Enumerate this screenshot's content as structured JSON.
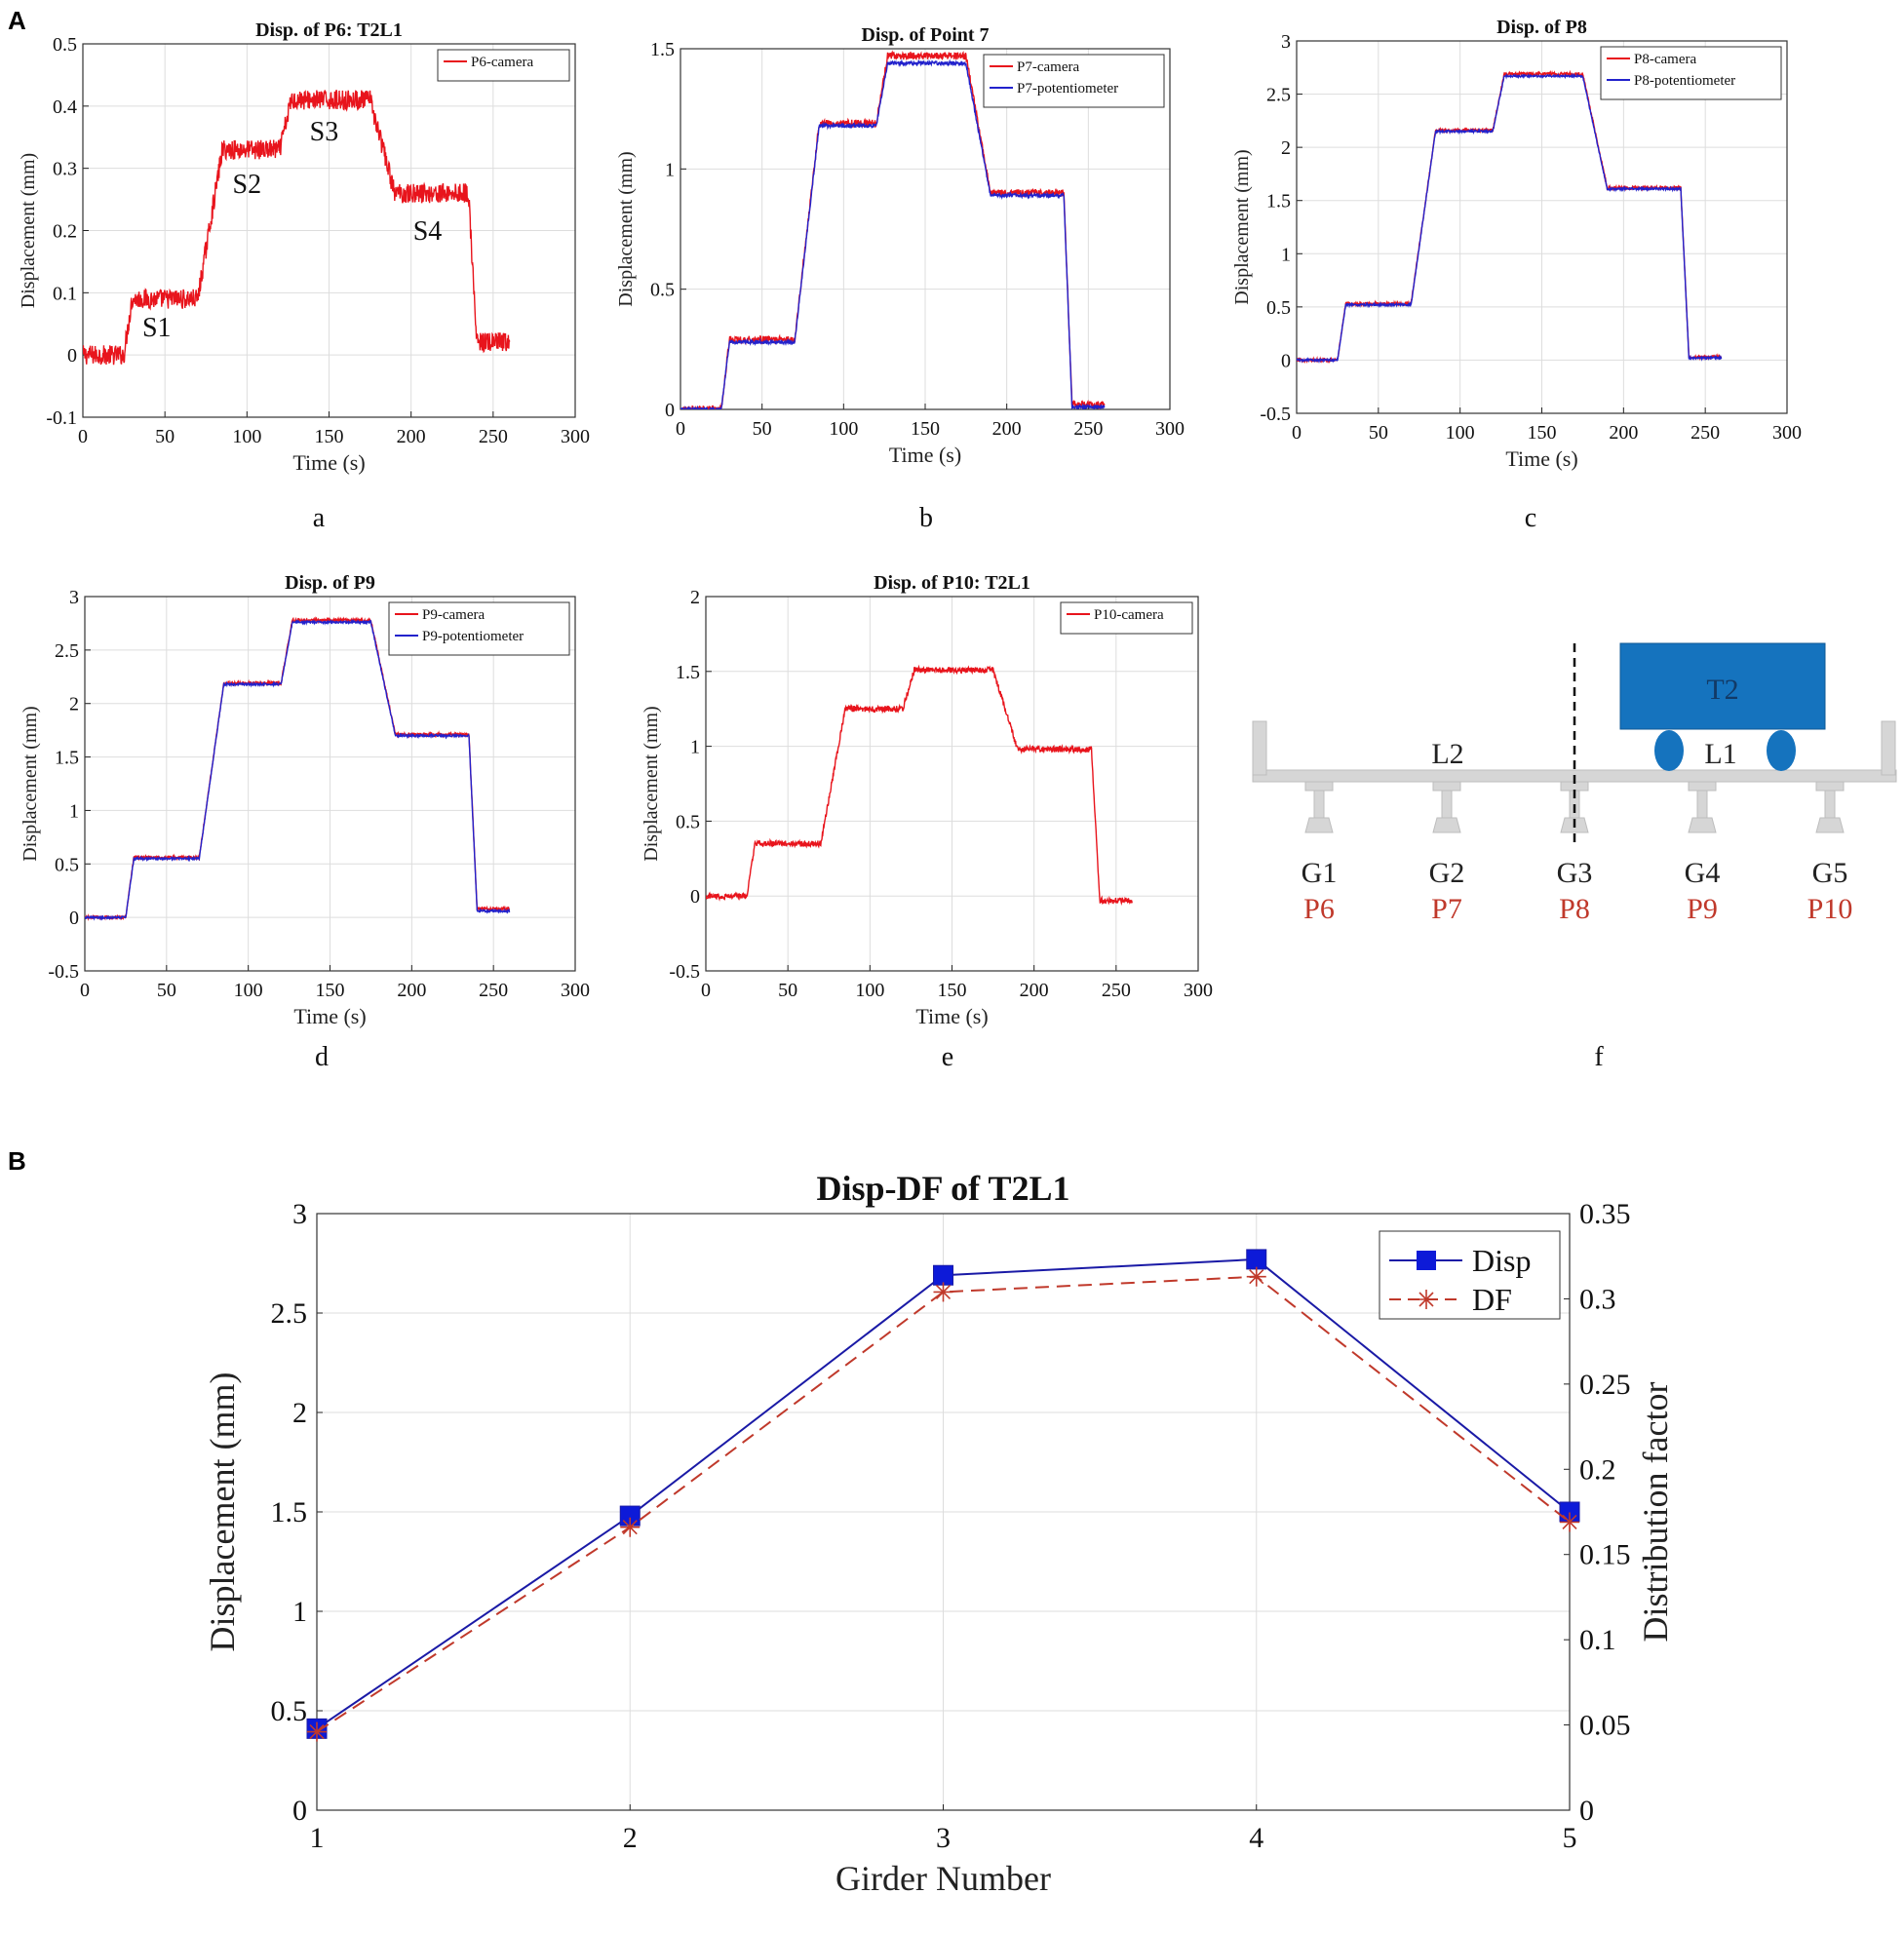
{
  "figure": {
    "panel_A_label": "A",
    "panel_B_label": "B"
  },
  "colors": {
    "camera": "#e8141c",
    "potentiometer": "#2222cc",
    "disp_line": "#1a1aa6",
    "disp_marker": "#0d1ad8",
    "df_line": "#c0392b",
    "grid": "#dddddd",
    "truck": "#1573be",
    "deck": "#d6d6d6",
    "point_label": "#c0392b"
  },
  "chart_data": [
    {
      "id": "a",
      "type": "line",
      "title": "Disp. of P6: T2L1",
      "xlabel": "Time (s)",
      "ylabel": "Displacement (mm)",
      "xlim": [
        0,
        300
      ],
      "ylim": [
        -0.1,
        0.5
      ],
      "xticks": [
        0,
        50,
        100,
        150,
        200,
        250,
        300
      ],
      "yticks": [
        -0.1,
        0,
        0.1,
        0.2,
        0.3,
        0.4,
        0.5
      ],
      "sublabel": "a",
      "series": [
        {
          "name": "P6-camera",
          "color": "camera",
          "noise": 0.016,
          "points": [
            [
              0,
              0
            ],
            [
              25,
              0
            ],
            [
              30,
              0.09
            ],
            [
              70,
              0.09
            ],
            [
              85,
              0.33
            ],
            [
              120,
              0.33
            ],
            [
              127,
              0.41
            ],
            [
              175,
              0.41
            ],
            [
              190,
              0.26
            ],
            [
              235,
              0.26
            ],
            [
              240,
              0.02
            ],
            [
              260,
              0.02
            ]
          ]
        }
      ],
      "annotations": [
        {
          "text": "S1",
          "x": 45,
          "y": 0.03
        },
        {
          "text": "S2",
          "x": 100,
          "y": 0.26
        },
        {
          "text": "S3",
          "x": 147,
          "y": 0.345
        },
        {
          "text": "S4",
          "x": 210,
          "y": 0.185
        }
      ]
    },
    {
      "id": "b",
      "type": "line",
      "title": "Disp. of Point 7",
      "xlabel": "Time (s)",
      "ylabel": "Displacement (mm)",
      "xlim": [
        0,
        300
      ],
      "ylim": [
        0,
        1.5
      ],
      "xticks": [
        0,
        50,
        100,
        150,
        200,
        250,
        300
      ],
      "yticks": [
        0,
        0.5,
        1,
        1.5
      ],
      "sublabel": "b",
      "series": [
        {
          "name": "P7-camera",
          "color": "camera",
          "noise": 0.015,
          "points": [
            [
              0,
              0
            ],
            [
              25,
              0
            ],
            [
              30,
              0.29
            ],
            [
              70,
              0.29
            ],
            [
              85,
              1.19
            ],
            [
              120,
              1.19
            ],
            [
              127,
              1.47
            ],
            [
              175,
              1.47
            ],
            [
              190,
              0.9
            ],
            [
              235,
              0.9
            ],
            [
              240,
              0.02
            ],
            [
              260,
              0.02
            ]
          ]
        },
        {
          "name": "P7-potentiometer",
          "color": "potentiometer",
          "noise": 0.008,
          "points": [
            [
              0,
              0
            ],
            [
              25,
              0
            ],
            [
              30,
              0.28
            ],
            [
              70,
              0.28
            ],
            [
              85,
              1.18
            ],
            [
              120,
              1.18
            ],
            [
              127,
              1.44
            ],
            [
              175,
              1.44
            ],
            [
              190,
              0.89
            ],
            [
              235,
              0.89
            ],
            [
              240,
              0.01
            ],
            [
              260,
              0.01
            ]
          ]
        }
      ]
    },
    {
      "id": "c",
      "type": "line",
      "title": "Disp. of P8",
      "xlabel": "Time (s)",
      "ylabel": "Displacement (mm)",
      "xlim": [
        0,
        300
      ],
      "ylim": [
        -0.5,
        3
      ],
      "xticks": [
        0,
        50,
        100,
        150,
        200,
        250,
        300
      ],
      "yticks": [
        -0.5,
        0,
        0.5,
        1,
        1.5,
        2,
        2.5,
        3
      ],
      "sublabel": "c",
      "series": [
        {
          "name": "P8-camera",
          "color": "camera",
          "noise": 0.015,
          "points": [
            [
              0,
              0
            ],
            [
              25,
              0
            ],
            [
              30,
              0.53
            ],
            [
              70,
              0.53
            ],
            [
              85,
              2.16
            ],
            [
              120,
              2.16
            ],
            [
              127,
              2.69
            ],
            [
              175,
              2.69
            ],
            [
              190,
              1.62
            ],
            [
              235,
              1.62
            ],
            [
              240,
              0.03
            ],
            [
              260,
              0.03
            ]
          ]
        },
        {
          "name": "P8-potentiometer",
          "color": "potentiometer",
          "noise": 0.01,
          "points": [
            [
              0,
              0
            ],
            [
              25,
              0
            ],
            [
              30,
              0.52
            ],
            [
              70,
              0.52
            ],
            [
              85,
              2.15
            ],
            [
              120,
              2.15
            ],
            [
              127,
              2.67
            ],
            [
              175,
              2.67
            ],
            [
              190,
              1.61
            ],
            [
              235,
              1.61
            ],
            [
              240,
              0.02
            ],
            [
              260,
              0.02
            ]
          ]
        }
      ]
    },
    {
      "id": "d",
      "type": "line",
      "title": "Disp. of P9",
      "xlabel": "Time (s)",
      "ylabel": "Displacement (mm)",
      "xlim": [
        0,
        300
      ],
      "ylim": [
        -0.5,
        3
      ],
      "xticks": [
        0,
        50,
        100,
        150,
        200,
        250,
        300
      ],
      "yticks": [
        -0.5,
        0,
        0.5,
        1,
        1.5,
        2,
        2.5,
        3
      ],
      "sublabel": "d",
      "series": [
        {
          "name": "P9-camera",
          "color": "camera",
          "noise": 0.015,
          "points": [
            [
              0,
              0
            ],
            [
              25,
              0
            ],
            [
              30,
              0.56
            ],
            [
              70,
              0.56
            ],
            [
              85,
              2.19
            ],
            [
              120,
              2.19
            ],
            [
              127,
              2.78
            ],
            [
              175,
              2.78
            ],
            [
              190,
              1.71
            ],
            [
              235,
              1.71
            ],
            [
              240,
              0.08
            ],
            [
              260,
              0.08
            ]
          ]
        },
        {
          "name": "P9-potentiometer",
          "color": "potentiometer",
          "noise": 0.01,
          "points": [
            [
              0,
              0
            ],
            [
              25,
              0
            ],
            [
              30,
              0.55
            ],
            [
              70,
              0.55
            ],
            [
              85,
              2.18
            ],
            [
              120,
              2.18
            ],
            [
              127,
              2.76
            ],
            [
              175,
              2.76
            ],
            [
              190,
              1.7
            ],
            [
              235,
              1.7
            ],
            [
              240,
              0.06
            ],
            [
              260,
              0.06
            ]
          ]
        }
      ]
    },
    {
      "id": "e",
      "type": "line",
      "title": "Disp. of P10: T2L1",
      "xlabel": "Time (s)",
      "ylabel": "Displacement (mm)",
      "xlim": [
        0,
        300
      ],
      "ylim": [
        -0.5,
        2
      ],
      "xticks": [
        0,
        50,
        100,
        150,
        200,
        250,
        300
      ],
      "yticks": [
        -0.5,
        0,
        0.5,
        1,
        1.5,
        2
      ],
      "sublabel": "e",
      "series": [
        {
          "name": "P10-camera",
          "color": "camera",
          "noise": 0.02,
          "points": [
            [
              0,
              0
            ],
            [
              25,
              0
            ],
            [
              30,
              0.35
            ],
            [
              70,
              0.35
            ],
            [
              85,
              1.25
            ],
            [
              120,
              1.25
            ],
            [
              127,
              1.51
            ],
            [
              175,
              1.51
            ],
            [
              190,
              0.98
            ],
            [
              235,
              0.98
            ],
            [
              240,
              -0.03
            ],
            [
              260,
              -0.03
            ]
          ]
        }
      ]
    },
    {
      "id": "B",
      "type": "line",
      "title": "Disp-DF of T2L1",
      "xlabel": "Girder Number",
      "ylabel": "Displacement (mm)",
      "ylabel_right": "Distribution factor",
      "xlim": [
        1,
        5
      ],
      "ylim": [
        0,
        3
      ],
      "ylim_right": [
        0,
        0.35
      ],
      "xticks": [
        1,
        2,
        3,
        4,
        5
      ],
      "yticks": [
        0,
        0.5,
        1,
        1.5,
        2,
        2.5,
        3
      ],
      "yticks_right": [
        0,
        0.05,
        0.1,
        0.15,
        0.2,
        0.25,
        0.3,
        0.35
      ],
      "series": [
        {
          "name": "Disp",
          "axis": "left",
          "color": "disp_line",
          "x": [
            1,
            2,
            3,
            4,
            5
          ],
          "values": [
            0.41,
            1.48,
            2.69,
            2.77,
            1.5
          ]
        },
        {
          "name": "DF",
          "axis": "right",
          "color": "df_line",
          "x": [
            1,
            2,
            3,
            4,
            5
          ],
          "values": [
            0.046,
            0.166,
            0.304,
            0.313,
            0.169
          ]
        }
      ]
    }
  ],
  "schematic": {
    "sublabel": "f",
    "truck_label": "T2",
    "lane_labels": [
      "L2",
      "L1"
    ],
    "girders": [
      {
        "name": "G1",
        "point": "P6"
      },
      {
        "name": "G2",
        "point": "P7"
      },
      {
        "name": "G3",
        "point": "P8"
      },
      {
        "name": "G4",
        "point": "P9"
      },
      {
        "name": "G5",
        "point": "P10"
      }
    ]
  }
}
